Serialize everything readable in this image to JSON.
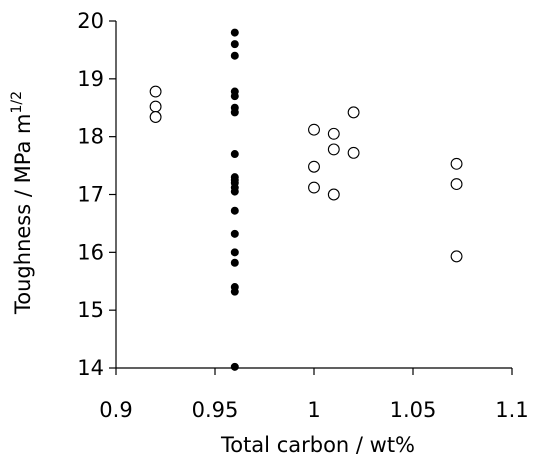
{
  "chart_data": {
    "type": "scatter",
    "xlabel": "Total carbon / wt%",
    "ylabel_main": "Toughness / MPa m",
    "ylabel_sup": "1/2",
    "xlim": [
      0.9,
      1.1
    ],
    "ylim": [
      14,
      20
    ],
    "xticks": [
      0.9,
      0.95,
      1.0,
      1.05,
      1.1
    ],
    "xtick_labels": [
      "0.9",
      "0.95",
      "1",
      "1.05",
      "1.1"
    ],
    "yticks": [
      14,
      15,
      16,
      17,
      18,
      19,
      20
    ],
    "ytick_labels": [
      "14",
      "15",
      "16",
      "17",
      "18",
      "19",
      "20"
    ],
    "grid": false,
    "legend": "none",
    "series": [
      {
        "marker": "filled-circle",
        "color": "#000000",
        "points": [
          [
            0.96,
            19.8
          ],
          [
            0.96,
            19.6
          ],
          [
            0.96,
            19.4
          ],
          [
            0.96,
            18.78
          ],
          [
            0.96,
            18.7
          ],
          [
            0.96,
            18.5
          ],
          [
            0.96,
            18.42
          ],
          [
            0.96,
            17.7
          ],
          [
            0.96,
            17.3
          ],
          [
            0.96,
            17.25
          ],
          [
            0.96,
            17.2
          ],
          [
            0.96,
            17.12
          ],
          [
            0.96,
            17.05
          ],
          [
            0.96,
            16.72
          ],
          [
            0.96,
            16.32
          ],
          [
            0.96,
            16.0
          ],
          [
            0.96,
            15.82
          ],
          [
            0.96,
            15.4
          ],
          [
            0.96,
            15.32
          ],
          [
            0.96,
            14.02
          ]
        ]
      },
      {
        "marker": "open-circle",
        "color": "#000000",
        "points": [
          [
            0.92,
            18.78
          ],
          [
            0.92,
            18.52
          ],
          [
            0.92,
            18.34
          ],
          [
            1.0,
            18.12
          ],
          [
            1.0,
            17.48
          ],
          [
            1.0,
            17.12
          ],
          [
            1.01,
            18.05
          ],
          [
            1.01,
            17.78
          ],
          [
            1.01,
            17.0
          ],
          [
            1.02,
            18.42
          ],
          [
            1.02,
            17.72
          ],
          [
            1.072,
            17.53
          ],
          [
            1.072,
            17.18
          ],
          [
            1.072,
            15.93
          ]
        ]
      }
    ]
  }
}
